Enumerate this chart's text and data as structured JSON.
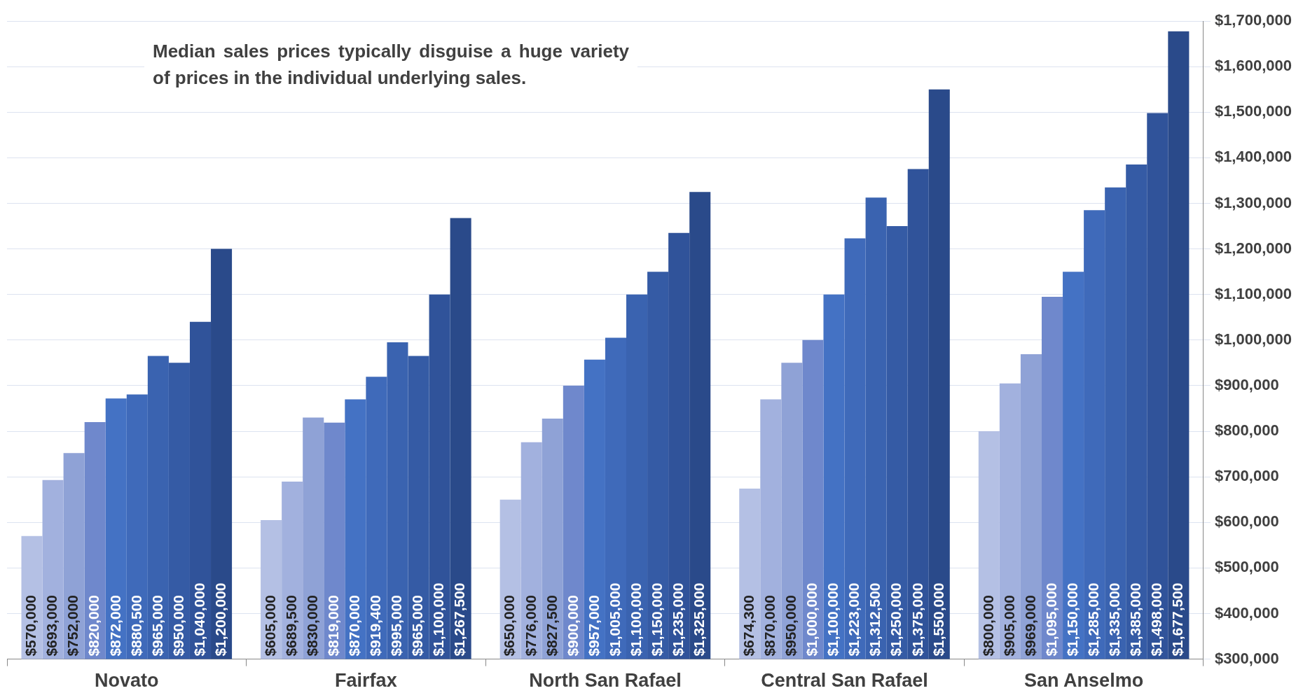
{
  "chart_data": {
    "type": "bar",
    "categories": [
      "Novato",
      "Fairfax",
      "North San Rafael",
      "Central San Rafael",
      "San Anselmo"
    ],
    "series": [
      {
        "color": "#b4c0e4",
        "values": [
          570000,
          605000,
          650000,
          674300,
          800000
        ],
        "value_labels": [
          "$570,000",
          "$605,000",
          "$650,000",
          "$674,300",
          "$800,000"
        ]
      },
      {
        "color": "#a2b1de",
        "values": [
          693000,
          689500,
          776000,
          870000,
          905000
        ],
        "value_labels": [
          "$693,000",
          "$689,500",
          "$776,000",
          "$870,000",
          "$905,000"
        ]
      },
      {
        "color": "#8fa2d6",
        "values": [
          752000,
          830000,
          827500,
          950000,
          969000
        ],
        "value_labels": [
          "$752,000",
          "$830,000",
          "$827,500",
          "$950,000",
          "$969,000"
        ]
      },
      {
        "color": "#6f88cc",
        "values": [
          820000,
          819000,
          900000,
          1000000,
          1095000
        ],
        "value_labels": [
          "$820,000",
          "$819,000",
          "$900,000",
          "$1,000,000",
          "$1,095,000"
        ]
      },
      {
        "color": "#4472c4",
        "values": [
          872000,
          870000,
          957000,
          1100000,
          1150000
        ],
        "value_labels": [
          "$872,000",
          "$870,000",
          "$957,000",
          "$1,100,000",
          "$1,150,000"
        ]
      },
      {
        "color": "#3f6aba",
        "values": [
          880500,
          919400,
          1005000,
          1223000,
          1285000
        ],
        "value_labels": [
          "$880,500",
          "$919,400",
          "$1,005,000",
          "$1,223,000",
          "$1,285,000"
        ]
      },
      {
        "color": "#3a63b0",
        "values": [
          965000,
          995000,
          1100000,
          1312500,
          1335000
        ],
        "value_labels": [
          "$965,000",
          "$995,000",
          "$1,100,000",
          "$1,312,500",
          "$1,335,000"
        ]
      },
      {
        "color": "#355ba5",
        "values": [
          950000,
          965000,
          1150000,
          1250000,
          1385000
        ],
        "value_labels": [
          "$950,000",
          "$965,000",
          "$1,150,000",
          "$1,250,000",
          "$1,385,000"
        ]
      },
      {
        "color": "#30539a",
        "values": [
          1040000,
          1100000,
          1235000,
          1375000,
          1498000
        ],
        "value_labels": [
          "$1,040,000",
          "$1,100,000",
          "$1,235,000",
          "$1,375,000",
          "$1,498,000"
        ]
      },
      {
        "color": "#2a4a8a",
        "values": [
          1200000,
          1267500,
          1325000,
          1550000,
          1677500
        ],
        "value_labels": [
          "$1,200,000",
          "$1,267,500",
          "$1,325,000",
          "$1,550,000",
          "$1,677,500"
        ]
      }
    ],
    "ylim": [
      300000,
      1700000
    ],
    "yticks": [
      {
        "value": 300000,
        "label": "$300,000"
      },
      {
        "value": 400000,
        "label": "$400,000"
      },
      {
        "value": 500000,
        "label": "$500,000"
      },
      {
        "value": 600000,
        "label": "$600,000"
      },
      {
        "value": 700000,
        "label": "$700,000"
      },
      {
        "value": 800000,
        "label": "$800,000"
      },
      {
        "value": 900000,
        "label": "$900,000"
      },
      {
        "value": 1000000,
        "label": "$1,000,000"
      },
      {
        "value": 1100000,
        "label": "$1,100,000"
      },
      {
        "value": 1200000,
        "label": "$1,200,000"
      },
      {
        "value": 1300000,
        "label": "$1,300,000"
      },
      {
        "value": 1400000,
        "label": "$1,400,000"
      },
      {
        "value": 1500000,
        "label": "$1,500,000"
      },
      {
        "value": 1600000,
        "label": "$1,600,000"
      },
      {
        "value": 1700000,
        "label": "$1,700,000"
      }
    ],
    "grid": "y",
    "legend": false,
    "annotations": [
      "Median sales prices typically disguise a huge variety of prices in the individual underlying sales."
    ]
  }
}
